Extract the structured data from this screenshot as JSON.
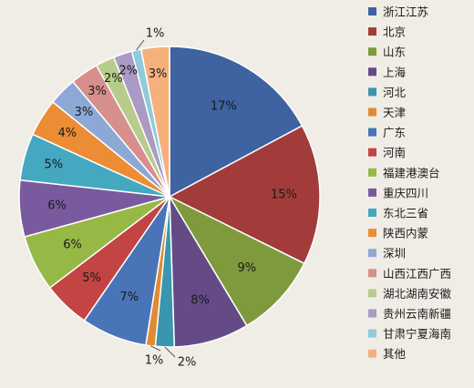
{
  "chart_data": {
    "type": "pie",
    "legend_position": "right",
    "slices": [
      {
        "name": "浙江江苏",
        "label": "17%",
        "value": 17,
        "color": "#3f62a0"
      },
      {
        "name": "北京",
        "label": "15%",
        "value": 15,
        "color": "#a13c3a"
      },
      {
        "name": "山东",
        "label": "9%",
        "value": 9,
        "color": "#7f9a3d"
      },
      {
        "name": "上海",
        "label": "8%",
        "value": 8,
        "color": "#644b86"
      },
      {
        "name": "河北",
        "label": "2%",
        "value": 2,
        "color": "#3996ad"
      },
      {
        "name": "天津",
        "label": "1%",
        "value": 1,
        "color": "#e08a33"
      },
      {
        "name": "广东",
        "label": "7%",
        "value": 7,
        "color": "#4a74b8"
      },
      {
        "name": "河南",
        "label": "5%",
        "value": 5,
        "color": "#c24443"
      },
      {
        "name": "福建港澳台",
        "label": "6%",
        "value": 6,
        "color": "#96b845"
      },
      {
        "name": "重庆四川",
        "label": "6%",
        "value": 6,
        "color": "#7a5a9e"
      },
      {
        "name": "东北三省",
        "label": "5%",
        "value": 5,
        "color": "#44a8c1"
      },
      {
        "name": "陕西内蒙",
        "label": "4%",
        "value": 4,
        "color": "#ec8c34"
      },
      {
        "name": "深圳",
        "label": "3%",
        "value": 3,
        "color": "#8ea8d5"
      },
      {
        "name": "山西江西广西",
        "label": "3%",
        "value": 3,
        "color": "#d78f8e"
      },
      {
        "name": "湖北湖南安徽",
        "label": "2%",
        "value": 2,
        "color": "#b7cc8b"
      },
      {
        "name": "贵州云南新疆",
        "label": "2%",
        "value": 2,
        "color": "#ab9ac4"
      },
      {
        "name": "甘肃宁夏海南",
        "label": "1%",
        "value": 1,
        "color": "#8fcbdc"
      },
      {
        "name": "其他",
        "label": "3%",
        "value": 3,
        "color": "#f5b07c"
      }
    ]
  }
}
